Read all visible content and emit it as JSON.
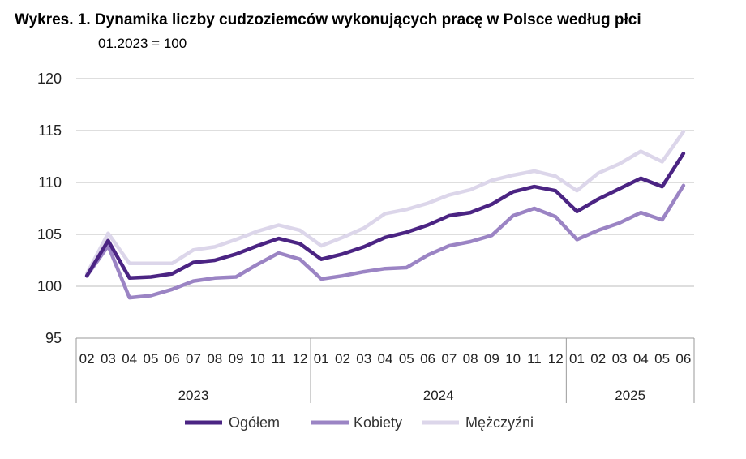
{
  "title": "Wykres. 1. Dynamika liczby cudzoziemców wykonujących pracę w Polsce według płci",
  "subtitle": "01.2023 = 100",
  "chart_data": {
    "type": "line",
    "title": "Wykres. 1. Dynamika liczby cudzoziemców wykonujących pracę w Polsce według płci",
    "subtitle": "01.2023 = 100",
    "categories": [
      "02",
      "03",
      "04",
      "05",
      "06",
      "07",
      "08",
      "09",
      "10",
      "11",
      "12",
      "01",
      "02",
      "03",
      "04",
      "05",
      "06",
      "07",
      "08",
      "09",
      "10",
      "11",
      "12",
      "01",
      "02",
      "03",
      "04",
      "05",
      "06"
    ],
    "year_groups": [
      {
        "label": "2023",
        "count": 11
      },
      {
        "label": "2024",
        "count": 12
      },
      {
        "label": "2025",
        "count": 6
      }
    ],
    "yticks": [
      "95",
      "100",
      "105",
      "110",
      "115",
      "120"
    ],
    "ylim": [
      95,
      120
    ],
    "grid": true,
    "legend_position": "bottom",
    "series": [
      {
        "name": "Ogółem",
        "color": "#4b2483",
        "values": [
          101.0,
          104.4,
          100.8,
          100.9,
          101.2,
          102.3,
          102.5,
          103.1,
          103.9,
          104.6,
          104.1,
          102.6,
          103.1,
          103.8,
          104.7,
          105.2,
          105.9,
          106.8,
          107.1,
          107.9,
          109.1,
          109.6,
          109.2,
          107.2,
          108.4,
          109.4,
          110.4,
          109.6,
          112.8
        ]
      },
      {
        "name": "Kobiety",
        "color": "#9b84c4",
        "values": [
          101.0,
          103.9,
          98.9,
          99.1,
          99.7,
          100.5,
          100.8,
          100.9,
          102.1,
          103.2,
          102.6,
          100.7,
          101.0,
          101.4,
          101.7,
          101.8,
          103.0,
          103.9,
          104.3,
          104.9,
          106.8,
          107.5,
          106.7,
          104.5,
          105.4,
          106.1,
          107.1,
          106.4,
          109.7
        ]
      },
      {
        "name": "Mężczyźni",
        "color": "#dcd6ea",
        "values": [
          101.2,
          105.1,
          102.2,
          102.2,
          102.2,
          103.5,
          103.8,
          104.5,
          105.3,
          105.9,
          105.4,
          103.9,
          104.7,
          105.6,
          107.0,
          107.4,
          108.0,
          108.8,
          109.3,
          110.2,
          110.7,
          111.1,
          110.6,
          109.2,
          110.9,
          111.8,
          113.0,
          112.0,
          114.9
        ]
      }
    ]
  }
}
